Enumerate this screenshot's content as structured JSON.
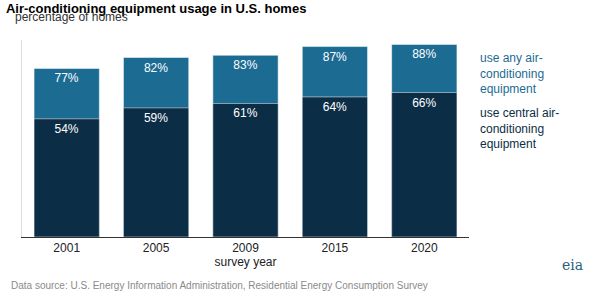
{
  "chart_data": {
    "type": "bar",
    "title": "Air-conditioning equipment usage in U.S. homes",
    "subtitle": "percentage of homes",
    "x_label": "survey year",
    "source": "Data source: U.S. Energy Information Administration, Residential Energy Consumption Survey",
    "logo_text": "eia",
    "categories": [
      "2001",
      "2005",
      "2009",
      "2015",
      "2020"
    ],
    "series": [
      {
        "name": "use any air-conditioning equipment",
        "color": "#1b6b93",
        "values": [
          77,
          82,
          83,
          87,
          88
        ],
        "value_labels": [
          "77%",
          "82%",
          "83%",
          "87%",
          "88%"
        ]
      },
      {
        "name": "use central air-conditioning equipment",
        "color": "#0c2d46",
        "values": [
          54,
          59,
          61,
          64,
          66
        ],
        "value_labels": [
          "54%",
          "59%",
          "61%",
          "64%",
          "66%"
        ]
      }
    ],
    "stacked": false,
    "data_labels": true,
    "tick_labels": "x",
    "grid": false,
    "ylim": [
      0,
      90
    ]
  }
}
